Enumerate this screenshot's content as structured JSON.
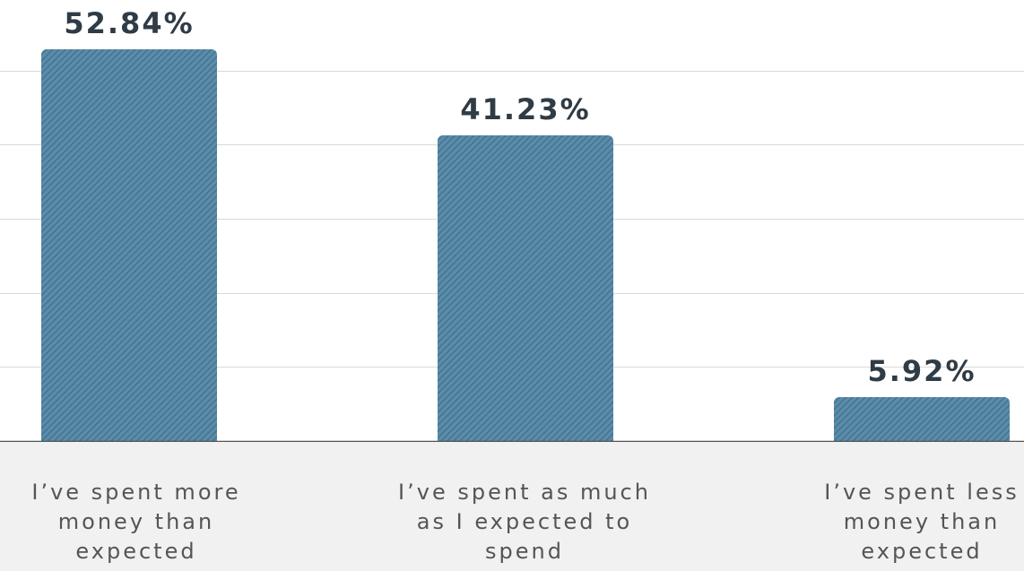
{
  "chart_data": {
    "type": "bar",
    "categories": [
      "I’ve spent more money than expected",
      "I’ve spent as much as I expected to spend",
      "I’ve spent less money than expected"
    ],
    "values": [
      52.84,
      41.23,
      5.92
    ],
    "value_labels": [
      "52.84%",
      "41.23%",
      "5.92%"
    ],
    "category_labels_display": [
      "I’ve spent more\nmoney than\nexpected",
      "I’ve spent as much\nas I expected to\nspend",
      "I’ve spent less\nmoney than\nexpected"
    ],
    "title": "",
    "xlabel": "",
    "ylabel": "",
    "ylim": [
      0,
      60
    ],
    "grid": true,
    "legend": "none",
    "colors": {
      "bar": "#5b8ca9",
      "bar_hatch": "#3f6f8c",
      "value_label": "#2f3b45",
      "category_band": "#f1f1f1",
      "category_text": "#555555"
    }
  }
}
